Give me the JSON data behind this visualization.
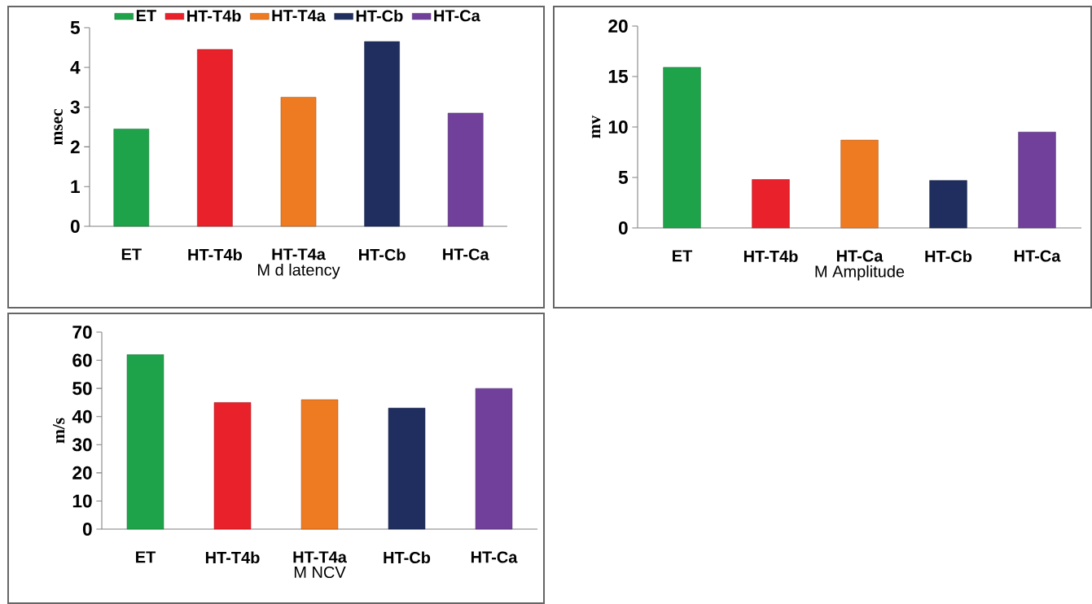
{
  "chart_data": [
    {
      "type": "bar",
      "categories": [
        "ET",
        "HT-T4b",
        "HT-T4a",
        "HT-Cb",
        "HT-Ca"
      ],
      "series": [
        {
          "name": "ET",
          "color": "#1fa34a",
          "values": [
            2.45,
            null,
            null,
            null,
            null
          ]
        },
        {
          "name": "HT-T4b",
          "color": "#e8212a",
          "values": [
            null,
            4.45,
            null,
            null,
            null
          ]
        },
        {
          "name": "HT-T4a",
          "color": "#ee7a22",
          "values": [
            null,
            null,
            3.25,
            null,
            null
          ]
        },
        {
          "name": "HT-Cb",
          "color": "#1f2e5e",
          "values": [
            null,
            null,
            null,
            4.65,
            null
          ]
        },
        {
          "name": "HT-Ca",
          "color": "#71409a",
          "values": [
            null,
            null,
            null,
            null,
            2.85
          ]
        }
      ],
      "xlabel": "M d latency",
      "ylabel": "msec",
      "ylim": [
        0,
        5
      ],
      "yticks": [
        0,
        1,
        2,
        3,
        4,
        5
      ],
      "legend": "top"
    },
    {
      "type": "bar",
      "categories": [
        "ET",
        "HT-T4b",
        "HT-Ca",
        "HT-Cb",
        "HT-Ca"
      ],
      "values": [
        15.9,
        4.8,
        8.7,
        4.7,
        9.5
      ],
      "colors": [
        "#1fa34a",
        "#e8212a",
        "#ee7a22",
        "#1f2e5e",
        "#71409a"
      ],
      "xlabel": "M Amplitude",
      "ylabel": "mv",
      "ylim": [
        0,
        20
      ],
      "yticks": [
        0,
        5,
        10,
        15,
        20
      ]
    },
    {
      "type": "bar",
      "categories": [
        "ET",
        "HT-T4b",
        "HT-T4a",
        "HT-Cb",
        "HT-Ca"
      ],
      "values": [
        62,
        45,
        46,
        43,
        50
      ],
      "colors": [
        "#1fa34a",
        "#e8212a",
        "#ee7a22",
        "#1f2e5e",
        "#71409a"
      ],
      "xlabel": "M NCV",
      "ylabel": "m/s",
      "ylim": [
        0,
        70
      ],
      "yticks": [
        0,
        10,
        20,
        30,
        40,
        50,
        60,
        70
      ]
    }
  ]
}
